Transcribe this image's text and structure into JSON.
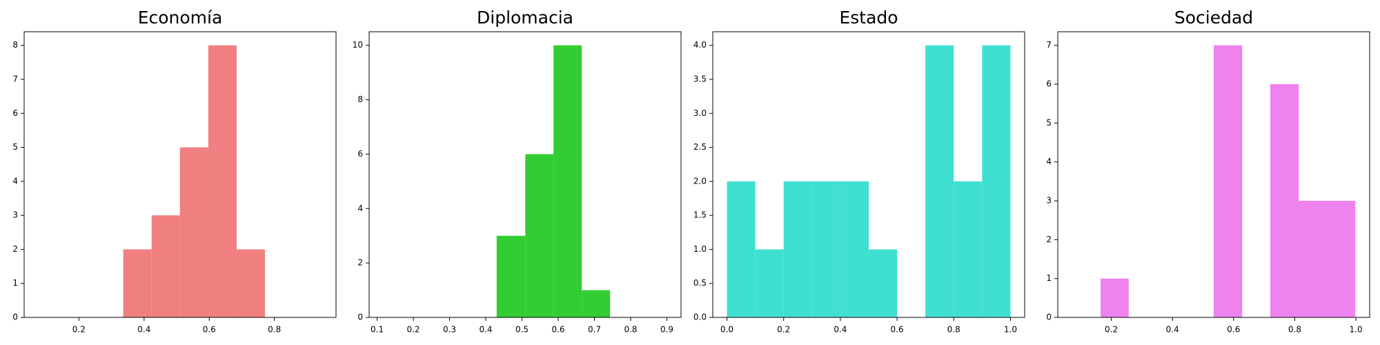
{
  "chart_data": [
    {
      "type": "histogram",
      "title": "Economía",
      "color": "#f08080",
      "bins": [
        0.075,
        0.162,
        0.249,
        0.336,
        0.423,
        0.51,
        0.597,
        0.684,
        0.771,
        0.858,
        0.945
      ],
      "values": [
        0,
        0,
        0,
        2,
        3,
        5,
        8,
        2,
        0,
        0
      ],
      "xlim": [
        0.032,
        0.989
      ],
      "xticks": [
        0.2,
        0.4,
        0.6,
        0.8
      ],
      "ylim": [
        0,
        8.4
      ],
      "yticks": [
        0,
        1,
        2,
        3,
        4,
        5,
        6,
        7,
        8
      ]
    },
    {
      "type": "histogram",
      "title": "Diplomacia",
      "color": "#32cd32",
      "bins": [
        0.117,
        0.195,
        0.274,
        0.352,
        0.43,
        0.509,
        0.587,
        0.665,
        0.743,
        0.822,
        0.9
      ],
      "values": [
        0,
        0,
        0,
        0,
        3,
        6,
        10,
        1,
        0,
        0
      ],
      "xlim": [
        0.078,
        0.939
      ],
      "xticks": [
        0.1,
        0.2,
        0.3,
        0.4,
        0.5,
        0.6,
        0.7,
        0.8,
        0.9
      ],
      "ylim": [
        0,
        10.5
      ],
      "yticks": [
        0,
        2,
        4,
        6,
        8,
        10
      ]
    },
    {
      "type": "histogram",
      "title": "Estado",
      "color": "#40e0d0",
      "bins": [
        0,
        0.1,
        0.2,
        0.3,
        0.4,
        0.5,
        0.6,
        0.7,
        0.8,
        0.9,
        1
      ],
      "values": [
        2,
        1,
        2,
        2,
        2,
        1,
        0,
        4,
        2,
        4
      ],
      "xlim": [
        -0.05,
        1.05
      ],
      "xticks": [
        {
          "value": 0,
          "label": "0.0"
        },
        0.2,
        0.4,
        0.6,
        0.8,
        {
          "value": 1,
          "label": "1.0"
        }
      ],
      "ylim": [
        0,
        4.2
      ],
      "yticks": [
        {
          "value": 0,
          "label": "0.0"
        },
        0.5,
        {
          "value": 1,
          "label": "1.0"
        },
        1.5,
        {
          "value": 2,
          "label": "2.0"
        },
        2.5,
        {
          "value": 3,
          "label": "3.0"
        },
        3.5,
        {
          "value": 4,
          "label": "4.0"
        }
      ]
    },
    {
      "type": "histogram",
      "title": "Sociedad",
      "color": "#ee82ee",
      "bins": [
        0.072,
        0.165,
        0.257,
        0.35,
        0.443,
        0.535,
        0.628,
        0.72,
        0.813,
        0.906,
        0.998
      ],
      "values": [
        0,
        1,
        0,
        0,
        0,
        7,
        0,
        6,
        3,
        3
      ],
      "xlim": [
        0.025,
        1.045
      ],
      "xticks": [
        0.2,
        0.4,
        0.6,
        0.8,
        {
          "value": 1,
          "label": "1.0"
        }
      ],
      "ylim": [
        0,
        7.35
      ],
      "yticks": [
        0,
        1,
        2,
        3,
        4,
        5,
        6,
        7
      ]
    }
  ]
}
